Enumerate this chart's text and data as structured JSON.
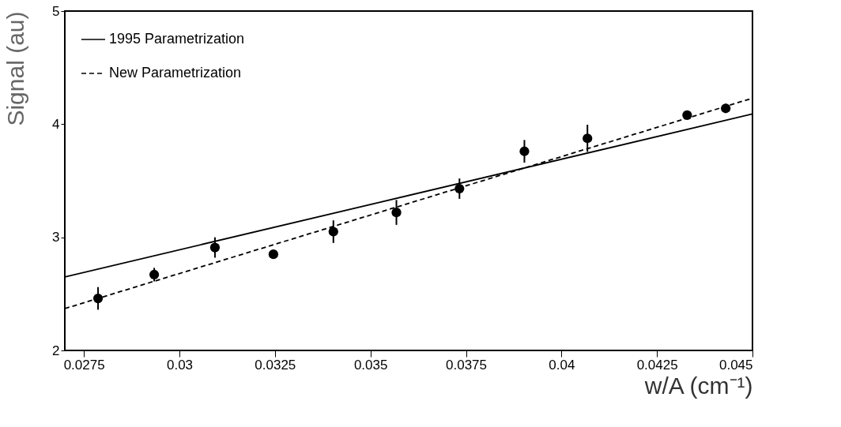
{
  "chart_data": {
    "type": "scatter",
    "xlabel": "w/A (cm⁻¹)",
    "ylabel": "Signal (au)",
    "xlim": [
      0.027,
      0.045
    ],
    "xticks": [
      0.0275,
      0.03,
      0.0325,
      0.035,
      0.0375,
      0.04,
      0.0425,
      0.045
    ],
    "ylim": [
      2,
      5
    ],
    "yticks": [
      2,
      3,
      4,
      5
    ],
    "grid": false,
    "legend": "top left",
    "series": [
      {
        "type": "line",
        "name": "1995 Parametrization",
        "color": "#000000",
        "line_style": "solid",
        "x": [
          0.027,
          0.045
        ],
        "values": [
          2.65,
          4.09
        ]
      },
      {
        "type": "line",
        "name": "New Parametrization",
        "color": "#000000",
        "line_style": "dashed",
        "x": [
          0.027,
          0.045
        ],
        "values": [
          2.37,
          4.23
        ]
      },
      {
        "color": "#000000",
        "marker": "circle",
        "x": [
          0.02787,
          0.02934,
          0.03093,
          0.03246,
          0.03403,
          0.03568,
          0.03733,
          0.03903,
          0.04068,
          0.04329,
          0.0443
        ],
        "values": [
          2.46,
          2.67,
          2.91,
          2.85,
          3.05,
          3.22,
          3.43,
          3.76,
          3.875,
          4.08,
          4.14
        ],
        "errors": [
          0.1,
          0.06,
          0.09,
          null,
          0.1,
          0.11,
          0.09,
          0.1,
          0.12,
          null,
          0.04
        ]
      }
    ]
  }
}
